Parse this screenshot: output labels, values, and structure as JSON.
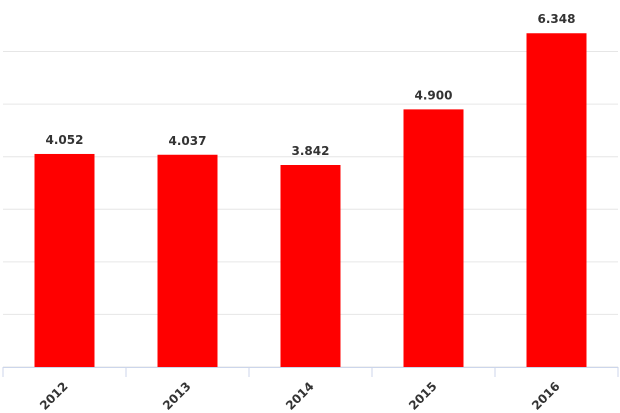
{
  "chart_data": {
    "type": "bar",
    "categories": [
      "2012",
      "2013",
      "2014",
      "2015",
      "2016"
    ],
    "values": [
      4.052,
      4.037,
      3.842,
      4.9,
      6.348
    ],
    "value_labels": [
      "4.052",
      "4.037",
      "3.842",
      "4.900",
      "6.348"
    ],
    "color": "#ff0000",
    "ylim": [
      0,
      6.6
    ],
    "yticks": [
      0,
      1,
      2,
      3,
      4,
      5,
      6
    ],
    "grid": true
  }
}
